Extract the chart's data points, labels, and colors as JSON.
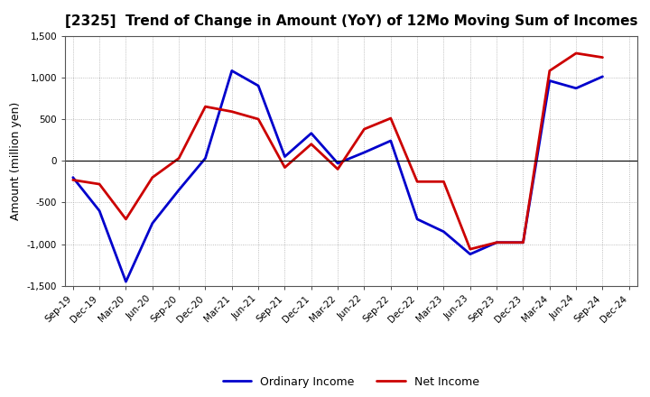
{
  "title": "[2325]  Trend of Change in Amount (YoY) of 12Mo Moving Sum of Incomes",
  "ylabel": "Amount (million yen)",
  "x_labels": [
    "Sep-19",
    "Dec-19",
    "Mar-20",
    "Jun-20",
    "Sep-20",
    "Dec-20",
    "Mar-21",
    "Jun-21",
    "Sep-21",
    "Dec-21",
    "Mar-22",
    "Jun-22",
    "Sep-22",
    "Dec-22",
    "Mar-23",
    "Jun-23",
    "Sep-23",
    "Dec-23",
    "Mar-24",
    "Jun-24",
    "Sep-24",
    "Dec-24"
  ],
  "ordinary_income": [
    -200,
    -600,
    -1450,
    -750,
    -350,
    30,
    1080,
    900,
    50,
    330,
    -30,
    100,
    240,
    -700,
    -850,
    -1120,
    -980,
    -980,
    960,
    870,
    1010,
    null
  ],
  "net_income": [
    -230,
    -280,
    -700,
    -200,
    30,
    650,
    590,
    500,
    -80,
    200,
    -100,
    380,
    510,
    -250,
    -250,
    -1060,
    -980,
    -980,
    1080,
    1290,
    1240,
    null
  ],
  "ordinary_income_color": "#0000cc",
  "net_income_color": "#cc0000",
  "ylim": [
    -1500,
    1500
  ],
  "yticks": [
    -1500,
    -1000,
    -500,
    0,
    500,
    1000,
    1500
  ],
  "background_color": "#ffffff",
  "plot_bg_color": "#ffffff",
  "grid_color": "#aaaaaa",
  "line_width": 2.0,
  "legend_labels": [
    "Ordinary Income",
    "Net Income"
  ],
  "title_fontsize": 11,
  "ylabel_fontsize": 9,
  "tick_fontsize": 7.5
}
